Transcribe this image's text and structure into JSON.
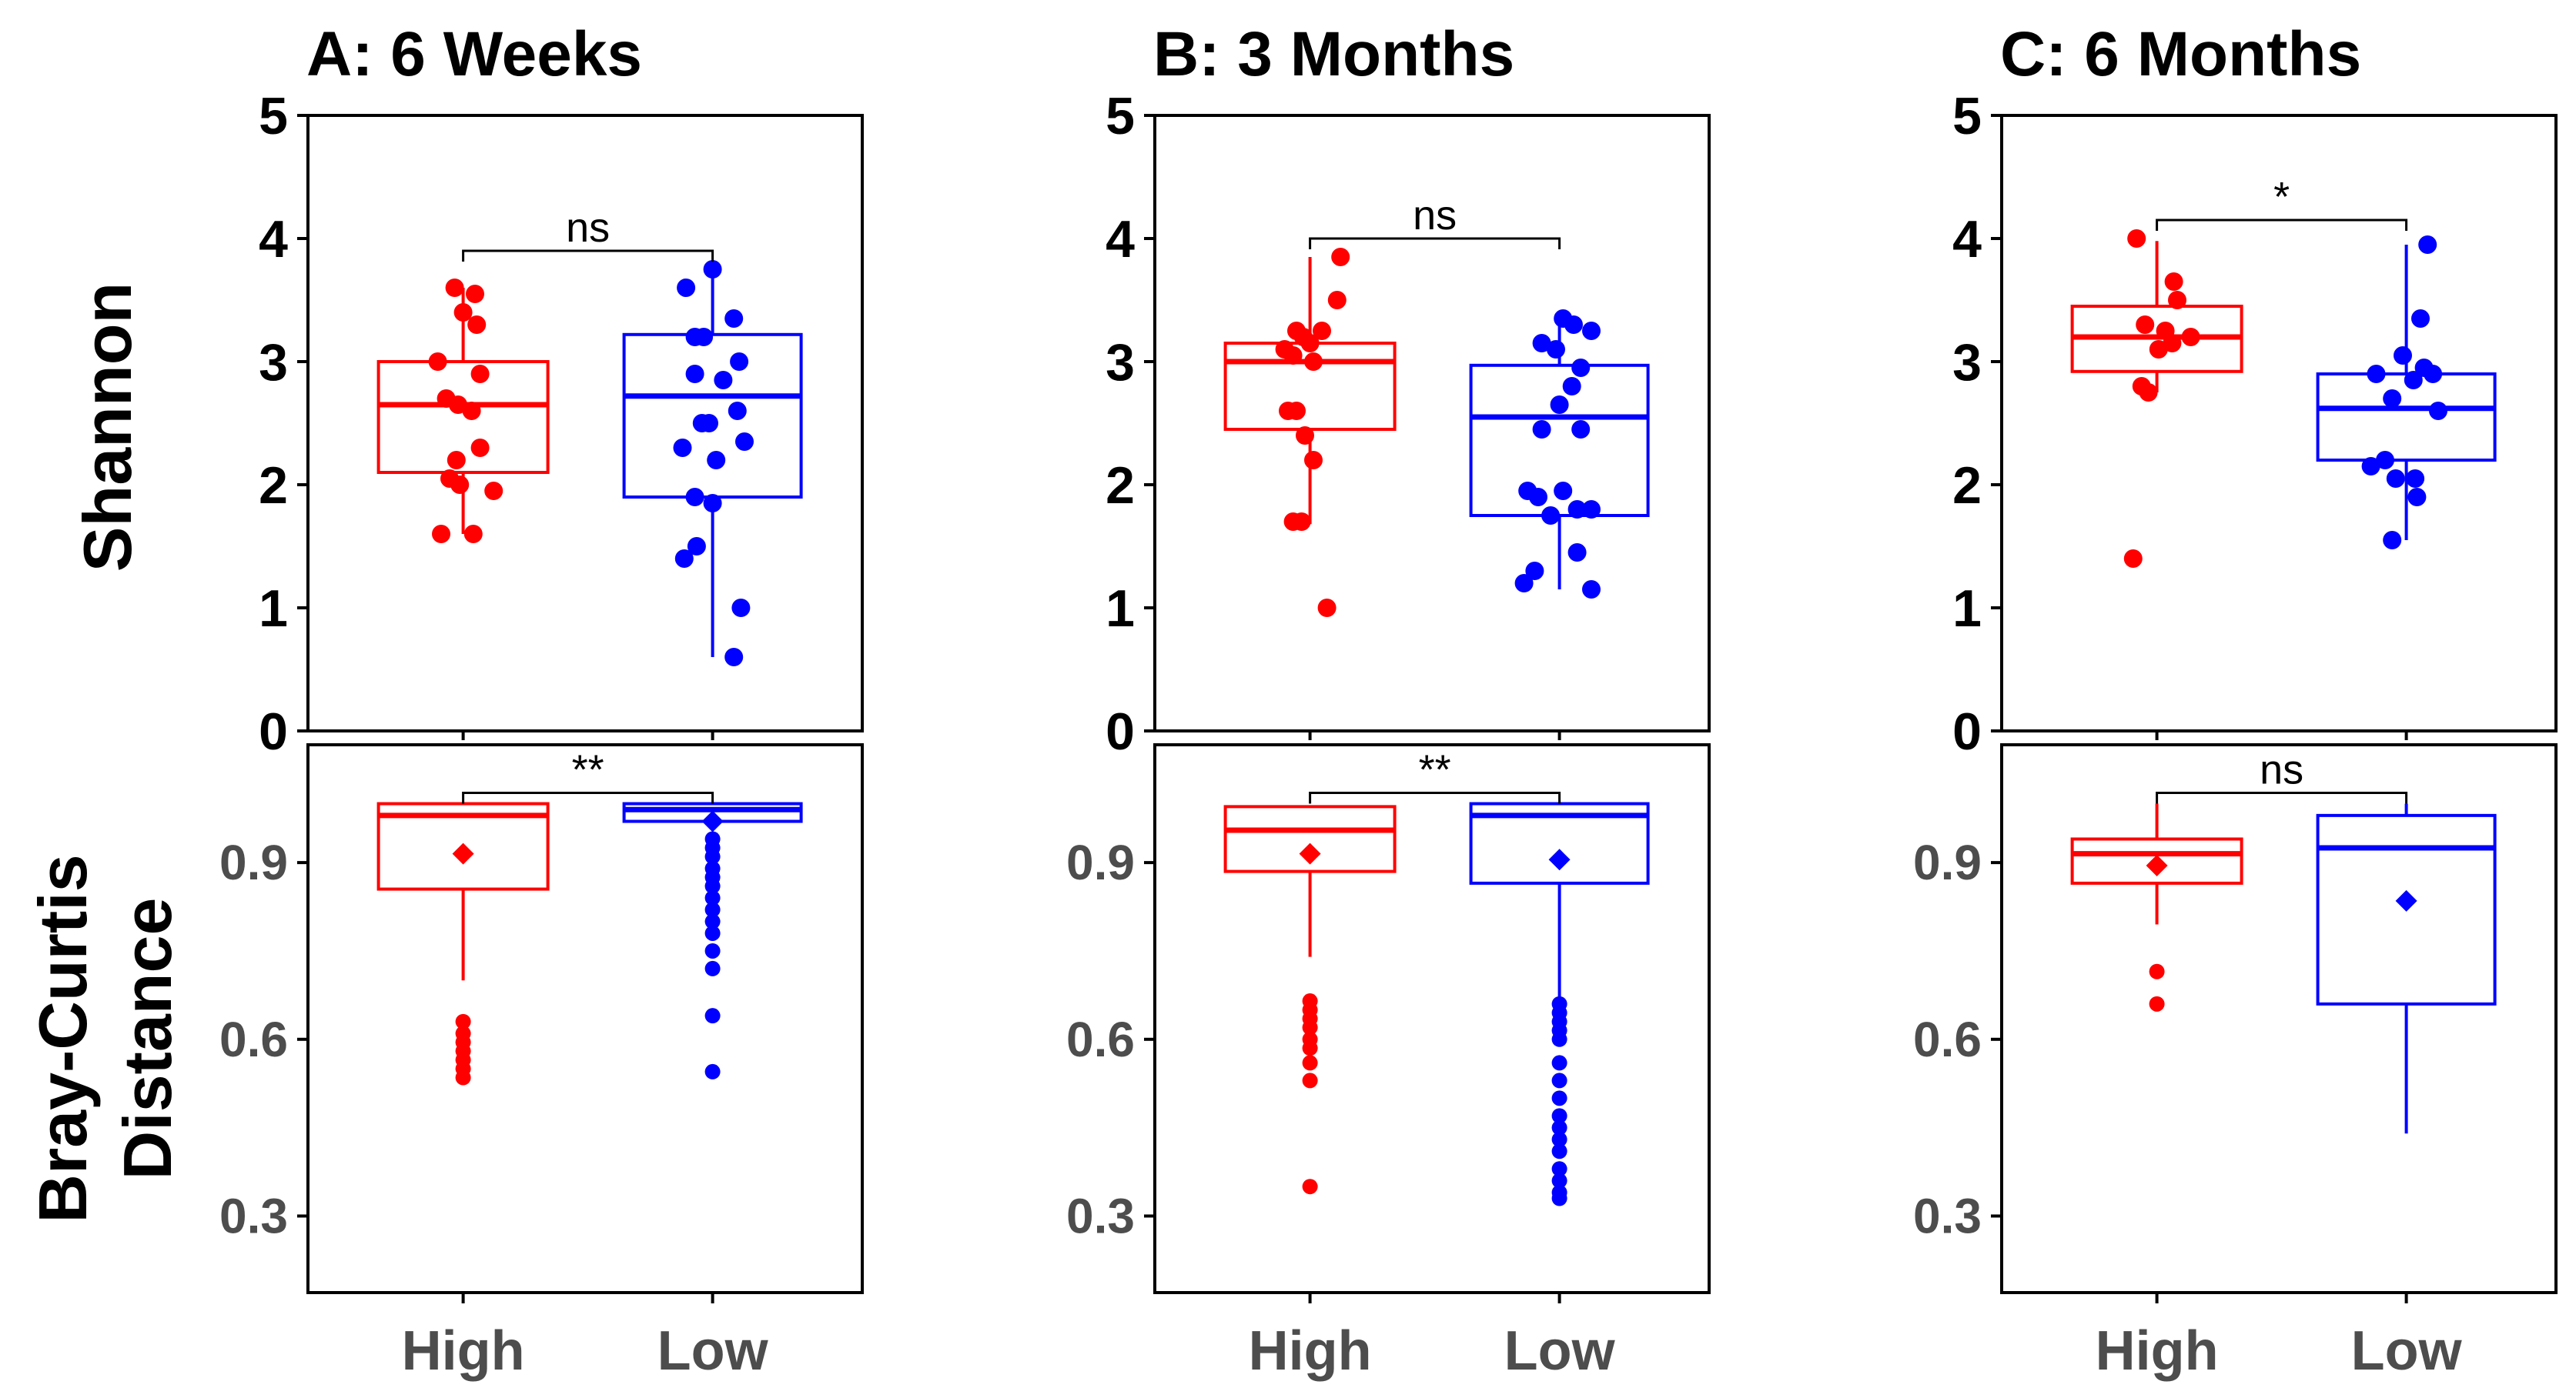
{
  "figure": {
    "panel_titles": [
      "A: 6 Weeks",
      "B: 3 Months",
      "C: 6 Months"
    ],
    "ylabel_top": "Shannon",
    "ylabel_bottom_lines": [
      "Bray-Curtis",
      "Distance"
    ],
    "colors": {
      "High": "#ff0000",
      "Low": "#0000ff",
      "axis": "#000000",
      "tick_text_bottom": "#4d4d4d"
    }
  },
  "chart_data": [
    {
      "type": "box",
      "title": "A: 6 Weeks",
      "metric": "Shannon",
      "categories": [
        "High",
        "Low"
      ],
      "ylim": [
        0,
        5
      ],
      "yticks": [
        "0",
        "1",
        "2",
        "3",
        "4",
        "5"
      ],
      "significance": "ns",
      "boxes": [
        {
          "name": "High",
          "q1": 2.1,
          "median": 2.65,
          "q3": 3.0,
          "whisker_low": 1.6,
          "whisker_high": 3.6,
          "points": [
            [
              -0.05,
              3.6
            ],
            [
              0.07,
              3.55
            ],
            [
              0.0,
              3.4
            ],
            [
              0.08,
              3.3
            ],
            [
              -0.15,
              3.0
            ],
            [
              0.1,
              2.9
            ],
            [
              -0.1,
              2.7
            ],
            [
              -0.03,
              2.65
            ],
            [
              0.05,
              2.6
            ],
            [
              0.1,
              2.3
            ],
            [
              -0.04,
              2.2
            ],
            [
              -0.08,
              2.05
            ],
            [
              -0.02,
              2.0
            ],
            [
              0.18,
              1.95
            ],
            [
              -0.13,
              1.6
            ],
            [
              0.06,
              1.6
            ]
          ]
        },
        {
          "name": "Low",
          "q1": 1.9,
          "median": 2.72,
          "q3": 3.22,
          "whisker_low": 0.6,
          "whisker_high": 3.75,
          "points": [
            [
              0.0,
              3.75
            ],
            [
              -0.15,
              3.6
            ],
            [
              0.12,
              3.35
            ],
            [
              -0.1,
              3.2
            ],
            [
              -0.05,
              3.2
            ],
            [
              0.15,
              3.0
            ],
            [
              -0.1,
              2.9
            ],
            [
              0.06,
              2.85
            ],
            [
              0.14,
              2.6
            ],
            [
              -0.02,
              2.5
            ],
            [
              -0.06,
              2.5
            ],
            [
              0.18,
              2.35
            ],
            [
              -0.17,
              2.3
            ],
            [
              0.02,
              2.2
            ],
            [
              -0.1,
              1.9
            ],
            [
              0.0,
              1.85
            ],
            [
              -0.16,
              1.4
            ],
            [
              -0.09,
              1.5
            ],
            [
              0.16,
              1.0
            ],
            [
              0.12,
              0.6
            ]
          ]
        }
      ]
    },
    {
      "type": "box",
      "title": "B: 3 Months",
      "metric": "Shannon",
      "categories": [
        "High",
        "Low"
      ],
      "ylim": [
        0,
        5
      ],
      "yticks": [
        "0",
        "1",
        "2",
        "3",
        "4",
        "5"
      ],
      "significance": "ns",
      "boxes": [
        {
          "name": "High",
          "q1": 2.45,
          "median": 3.0,
          "q3": 3.15,
          "whisker_low": 1.68,
          "whisker_high": 3.85,
          "points": [
            [
              0.18,
              3.85
            ],
            [
              0.16,
              3.5
            ],
            [
              -0.08,
              3.25
            ],
            [
              -0.04,
              3.2
            ],
            [
              0.0,
              3.15
            ],
            [
              0.07,
              3.25
            ],
            [
              -0.15,
              3.1
            ],
            [
              -0.1,
              3.05
            ],
            [
              0.02,
              3.0
            ],
            [
              -0.13,
              2.6
            ],
            [
              -0.08,
              2.6
            ],
            [
              -0.03,
              2.4
            ],
            [
              0.02,
              2.2
            ],
            [
              -0.1,
              1.7
            ],
            [
              -0.05,
              1.7
            ],
            [
              0.1,
              1.0
            ]
          ]
        },
        {
          "name": "Low",
          "q1": 1.75,
          "median": 2.55,
          "q3": 2.97,
          "whisker_low": 1.15,
          "whisker_high": 3.35,
          "points": [
            [
              0.02,
              3.35
            ],
            [
              0.08,
              3.3
            ],
            [
              0.18,
              3.25
            ],
            [
              -0.1,
              3.15
            ],
            [
              -0.02,
              3.1
            ],
            [
              0.12,
              2.95
            ],
            [
              0.07,
              2.8
            ],
            [
              0.0,
              2.65
            ],
            [
              -0.1,
              2.45
            ],
            [
              0.12,
              2.45
            ],
            [
              -0.18,
              1.95
            ],
            [
              -0.12,
              1.9
            ],
            [
              0.02,
              1.95
            ],
            [
              -0.05,
              1.75
            ],
            [
              0.1,
              1.8
            ],
            [
              0.18,
              1.8
            ],
            [
              -0.14,
              1.3
            ],
            [
              0.1,
              1.45
            ],
            [
              -0.2,
              1.2
            ],
            [
              0.18,
              1.15
            ]
          ]
        }
      ]
    },
    {
      "type": "box",
      "title": "C: 6 Months",
      "metric": "Shannon",
      "categories": [
        "High",
        "Low"
      ],
      "ylim": [
        0,
        5
      ],
      "yticks": [
        "0",
        "1",
        "2",
        "3",
        "4",
        "5"
      ],
      "significance": "*",
      "boxes": [
        {
          "name": "High",
          "q1": 2.92,
          "median": 3.2,
          "q3": 3.45,
          "whisker_low": 2.75,
          "whisker_high": 3.98,
          "points": [
            [
              -0.12,
              4.0
            ],
            [
              0.1,
              3.65
            ],
            [
              0.12,
              3.5
            ],
            [
              -0.07,
              3.3
            ],
            [
              0.05,
              3.25
            ],
            [
              0.2,
              3.2
            ],
            [
              0.09,
              3.15
            ],
            [
              0.01,
              3.1
            ],
            [
              -0.09,
              2.8
            ],
            [
              -0.05,
              2.75
            ],
            [
              -0.14,
              1.4
            ]
          ]
        },
        {
          "name": "Low",
          "q1": 2.2,
          "median": 2.62,
          "q3": 2.9,
          "whisker_low": 1.55,
          "whisker_high": 3.95,
          "points": [
            [
              0.12,
              3.95
            ],
            [
              0.08,
              3.35
            ],
            [
              -0.02,
              3.05
            ],
            [
              0.1,
              2.95
            ],
            [
              0.15,
              2.9
            ],
            [
              -0.17,
              2.9
            ],
            [
              0.04,
              2.85
            ],
            [
              0.18,
              2.6
            ],
            [
              -0.08,
              2.7
            ],
            [
              -0.12,
              2.2
            ],
            [
              -0.2,
              2.15
            ],
            [
              0.05,
              2.05
            ],
            [
              -0.06,
              2.05
            ],
            [
              0.06,
              1.9
            ],
            [
              -0.08,
              1.55
            ]
          ]
        }
      ]
    },
    {
      "type": "box",
      "title": "A: 6 Weeks",
      "metric": "Bray-Curtis Distance",
      "categories": [
        "High",
        "Low"
      ],
      "ylim": [
        0.17,
        1.1
      ],
      "yticks": [
        "0.3",
        "0.6",
        "0.9"
      ],
      "significance": "**",
      "boxes": [
        {
          "name": "High",
          "q1": 0.855,
          "median": 0.98,
          "q3": 1.0,
          "whisker_low": 0.7,
          "whisker_high": 1.0,
          "mean": 0.915,
          "outliers": [
            0.63,
            0.61,
            0.595,
            0.58,
            0.565,
            0.55,
            0.535
          ]
        },
        {
          "name": "Low",
          "q1": 0.97,
          "median": 0.99,
          "q3": 1.0,
          "whisker_low": 0.97,
          "whisker_high": 1.0,
          "mean": 0.97,
          "outliers": [
            0.94,
            0.925,
            0.91,
            0.89,
            0.875,
            0.86,
            0.84,
            0.82,
            0.8,
            0.78,
            0.75,
            0.72,
            0.64,
            0.545
          ]
        }
      ]
    },
    {
      "type": "box",
      "title": "B: 3 Months",
      "metric": "Bray-Curtis Distance",
      "categories": [
        "High",
        "Low"
      ],
      "ylim": [
        0.17,
        1.1
      ],
      "yticks": [
        "0.3",
        "0.6",
        "0.9"
      ],
      "significance": "**",
      "boxes": [
        {
          "name": "High",
          "q1": 0.885,
          "median": 0.955,
          "q3": 0.995,
          "whisker_low": 0.74,
          "whisker_high": 0.995,
          "mean": 0.915,
          "outliers": [
            0.665,
            0.65,
            0.635,
            0.62,
            0.6,
            0.585,
            0.56,
            0.53,
            0.35
          ]
        },
        {
          "name": "Low",
          "q1": 0.865,
          "median": 0.98,
          "q3": 1.0,
          "whisker_low": 0.665,
          "whisker_high": 1.0,
          "mean": 0.905,
          "outliers": [
            0.66,
            0.645,
            0.63,
            0.615,
            0.6,
            0.56,
            0.53,
            0.5,
            0.47,
            0.45,
            0.43,
            0.41,
            0.38,
            0.36,
            0.34,
            0.33
          ]
        }
      ]
    },
    {
      "type": "box",
      "title": "C: 6 Months",
      "metric": "Bray-Curtis Distance",
      "categories": [
        "High",
        "Low"
      ],
      "ylim": [
        0.17,
        1.1
      ],
      "yticks": [
        "0.3",
        "0.6",
        "0.9"
      ],
      "significance": "ns",
      "boxes": [
        {
          "name": "High",
          "q1": 0.865,
          "median": 0.915,
          "q3": 0.94,
          "whisker_low": 0.795,
          "whisker_high": 1.0,
          "mean": 0.895,
          "outliers": [
            0.715,
            0.66
          ]
        },
        {
          "name": "Low",
          "q1": 0.66,
          "median": 0.925,
          "q3": 0.98,
          "whisker_low": 0.44,
          "whisker_high": 1.0,
          "mean": 0.835,
          "outliers": []
        }
      ]
    }
  ]
}
